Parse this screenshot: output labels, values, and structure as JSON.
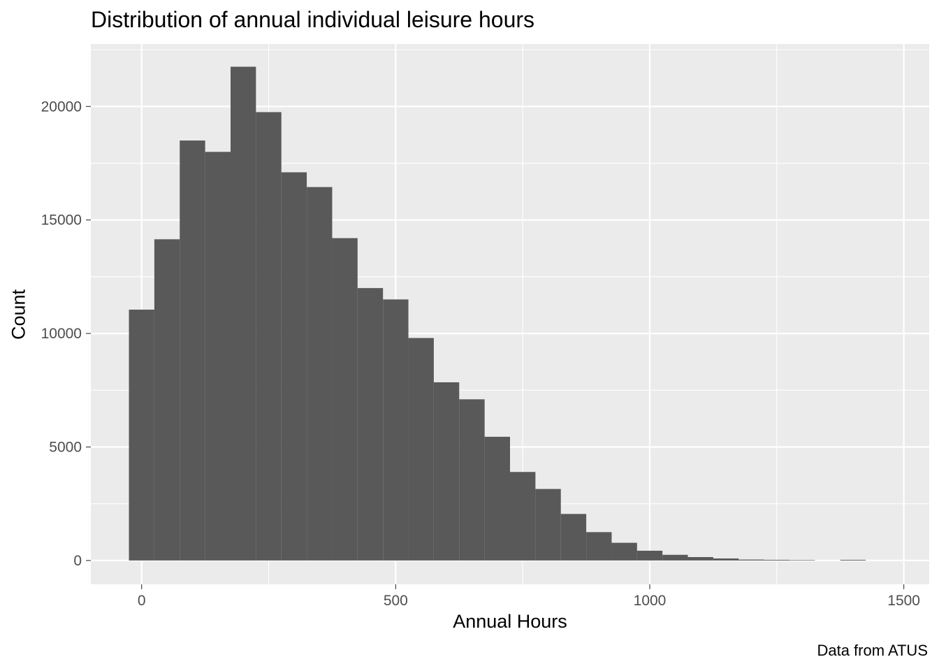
{
  "chart_data": {
    "type": "bar",
    "title": "Distribution of annual individual leisure hours",
    "xlabel": "Annual Hours",
    "ylabel": "Count",
    "caption": "Data from ATUS",
    "xlim": [
      -100,
      1550
    ],
    "ylim": [
      -1050,
      22750
    ],
    "x_ticks": [
      0,
      500,
      1000,
      1500
    ],
    "y_ticks": [
      0,
      5000,
      10000,
      15000,
      20000
    ],
    "bin_width": 50,
    "bins": [
      {
        "x0": -25,
        "x1": 25,
        "count": 11050
      },
      {
        "x0": 25,
        "x1": 75,
        "count": 14150
      },
      {
        "x0": 75,
        "x1": 125,
        "count": 18500
      },
      {
        "x0": 125,
        "x1": 175,
        "count": 18000
      },
      {
        "x0": 175,
        "x1": 225,
        "count": 21750
      },
      {
        "x0": 225,
        "x1": 275,
        "count": 19750
      },
      {
        "x0": 275,
        "x1": 325,
        "count": 17100
      },
      {
        "x0": 325,
        "x1": 375,
        "count": 16450
      },
      {
        "x0": 375,
        "x1": 425,
        "count": 14200
      },
      {
        "x0": 425,
        "x1": 475,
        "count": 12000
      },
      {
        "x0": 475,
        "x1": 525,
        "count": 11500
      },
      {
        "x0": 525,
        "x1": 575,
        "count": 9800
      },
      {
        "x0": 575,
        "x1": 625,
        "count": 7850
      },
      {
        "x0": 625,
        "x1": 675,
        "count": 7100
      },
      {
        "x0": 675,
        "x1": 725,
        "count": 5450
      },
      {
        "x0": 725,
        "x1": 775,
        "count": 3900
      },
      {
        "x0": 775,
        "x1": 825,
        "count": 3150
      },
      {
        "x0": 825,
        "x1": 875,
        "count": 2050
      },
      {
        "x0": 875,
        "x1": 925,
        "count": 1250
      },
      {
        "x0": 925,
        "x1": 975,
        "count": 780
      },
      {
        "x0": 975,
        "x1": 1025,
        "count": 430
      },
      {
        "x0": 1025,
        "x1": 1075,
        "count": 250
      },
      {
        "x0": 1075,
        "x1": 1125,
        "count": 150
      },
      {
        "x0": 1125,
        "x1": 1175,
        "count": 90
      },
      {
        "x0": 1175,
        "x1": 1225,
        "count": 40
      },
      {
        "x0": 1225,
        "x1": 1275,
        "count": 30
      },
      {
        "x0": 1275,
        "x1": 1325,
        "count": 20
      },
      {
        "x0": 1325,
        "x1": 1375,
        "count": 0
      },
      {
        "x0": 1375,
        "x1": 1425,
        "count": 30
      }
    ],
    "grid": true,
    "colors": {
      "panel_background": "#ebebeb",
      "grid_major": "#ffffff",
      "bar_fill": "#595959",
      "tick_label": "#4d4d4d",
      "tick_mark": "#333333"
    }
  }
}
